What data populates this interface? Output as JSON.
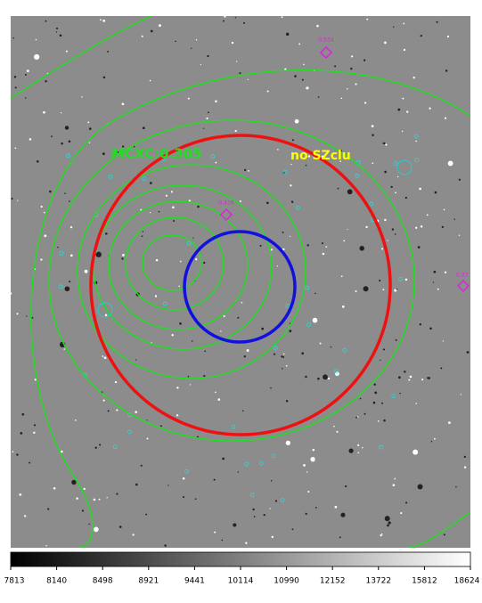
{
  "image": {
    "annotations": [
      {
        "text": "MCXC:0.305",
        "color": "#22dd22"
      },
      {
        "text": "no SZclu",
        "color": "#ffff00"
      }
    ],
    "redshift_labels": [
      "0.534",
      "0.416",
      "0.33"
    ]
  },
  "colorbar": {
    "labels": [
      "7813",
      "8140",
      "8498",
      "8921",
      "9441",
      "10114",
      "10990",
      "12152",
      "13722",
      "15812",
      "18624"
    ]
  }
}
